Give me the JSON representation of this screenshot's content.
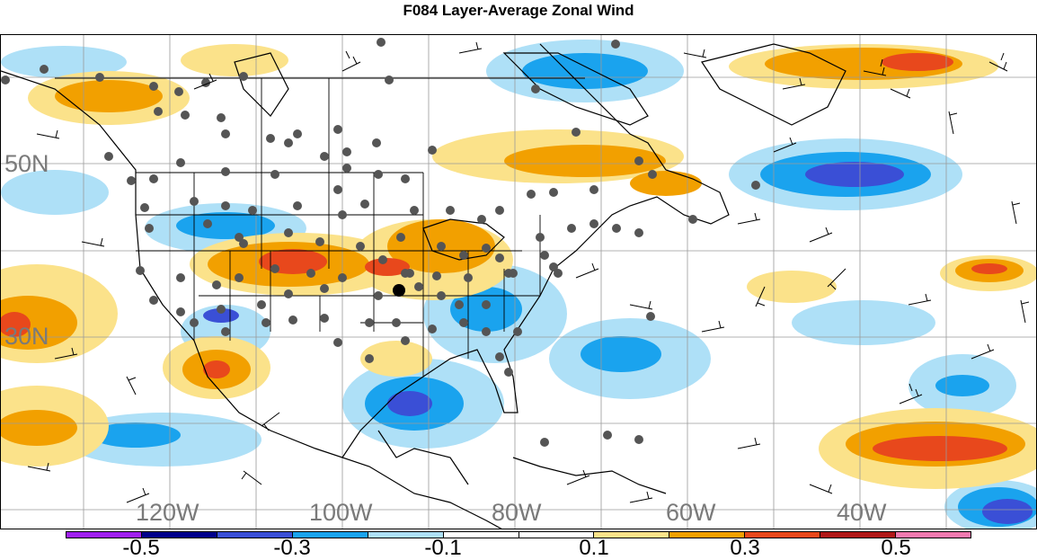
{
  "title": "F084 Layer-Average Zonal Wind",
  "lat_labels": [
    "50N",
    "30N"
  ],
  "lon_labels": [
    "120W",
    "100W",
    "80W",
    "60W",
    "40W"
  ],
  "colorbar": {
    "colors": [
      "#a020f0",
      "#00008b",
      "#3a4fd6",
      "#1aa3ee",
      "#aee0f7",
      "#ffffff",
      "#ffffff",
      "#fbe28a",
      "#f2a000",
      "#e8481c",
      "#b01818",
      "#f07ab0"
    ],
    "tick_labels": [
      "-0.5",
      "-0.3",
      "-0.1",
      "0.1",
      "0.3",
      "0.5"
    ]
  },
  "map": {
    "positive_color_light": "#fbe28a",
    "positive_color_mid": "#f2a000",
    "positive_color_strong": "#e8481c",
    "negative_color_light": "#aee0f7",
    "negative_color_mid": "#1aa3ee",
    "negative_color_strong": "#3a4fd6",
    "station_color": "#555555",
    "highlight_station_color": "#000000"
  }
}
